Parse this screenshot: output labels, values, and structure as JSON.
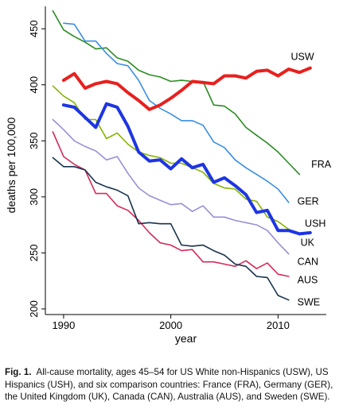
{
  "chart_data": {
    "type": "line",
    "xlabel": "year",
    "ylabel": "deaths per 100,000",
    "xlim": [
      1988.3,
      2014.5
    ],
    "ylim": [
      195,
      470
    ],
    "xticks": [
      1990,
      2000,
      2010
    ],
    "yticks": [
      200,
      250,
      300,
      350,
      400,
      450
    ],
    "grid": false,
    "legend": "inline labels at line ends",
    "series": [
      {
        "name": "USW",
        "color": "#e8201e",
        "width": 4,
        "x": [
          1990,
          1991,
          1992,
          1993,
          1994,
          1995,
          1996,
          1997,
          1998,
          1999,
          2000,
          2001,
          2002,
          2003,
          2004,
          2005,
          2006,
          2007,
          2008,
          2009,
          2010,
          2011,
          2012,
          2013
        ],
        "y": [
          404,
          410,
          397,
          401,
          403,
          401,
          393,
          386,
          378,
          382,
          388,
          395,
          403,
          402,
          401,
          408,
          408,
          406,
          412,
          413,
          408,
          414,
          411,
          415
        ]
      },
      {
        "name": "FRA",
        "color": "#2a8c21",
        "width": 1.6,
        "x": [
          1989,
          1990,
          1991,
          1992,
          1993,
          1994,
          1995,
          1996,
          1997,
          1998,
          1999,
          2000,
          2001,
          2002,
          2003,
          2004,
          2005,
          2006,
          2007,
          2008,
          2009,
          2010,
          2011,
          2012
        ],
        "y": [
          466,
          449,
          443,
          438,
          432,
          433,
          424,
          421,
          413,
          409,
          407,
          403,
          404,
          403,
          403,
          382,
          381,
          374,
          362,
          355,
          348,
          340,
          330,
          320
        ]
      },
      {
        "name": "GER",
        "color": "#3a8ee6",
        "width": 1.6,
        "x": [
          1990,
          1991,
          1992,
          1993,
          1994,
          1995,
          1996,
          1997,
          1998,
          1999,
          2000,
          2001,
          2002,
          2003,
          2004,
          2005,
          2006,
          2007,
          2008,
          2009,
          2010,
          2011
        ],
        "y": [
          455,
          454,
          439,
          439,
          428,
          419,
          417,
          404,
          386,
          379,
          374,
          368,
          368,
          364,
          349,
          344,
          333,
          326,
          320,
          314,
          307,
          295
        ]
      },
      {
        "name": "USH",
        "color": "#1d35e3",
        "width": 4,
        "x": [
          1990,
          1991,
          1992,
          1993,
          1994,
          1995,
          1996,
          1997,
          1998,
          1999,
          2000,
          2001,
          2002,
          2003,
          2004,
          2005,
          2006,
          2007,
          2008,
          2009,
          2010,
          2011,
          2012,
          2013
        ],
        "y": [
          382,
          380,
          371,
          362,
          383,
          380,
          363,
          340,
          332,
          333,
          325,
          334,
          326,
          329,
          313,
          317,
          310,
          302,
          286,
          288,
          270,
          270,
          267,
          268
        ]
      },
      {
        "name": "UK",
        "color": "#86b400",
        "width": 1.6,
        "x": [
          1989,
          1990,
          1991,
          1992,
          1993,
          1994,
          1995,
          1996,
          1997,
          1998,
          1999,
          2000,
          2001,
          2002,
          2003,
          2004,
          2005,
          2006,
          2007,
          2008,
          2009,
          2010,
          2011
        ],
        "y": [
          399,
          390,
          384,
          369,
          369,
          352,
          357,
          347,
          340,
          337,
          335,
          330,
          330,
          326,
          322,
          312,
          308,
          307,
          298,
          296,
          282,
          278,
          271
        ]
      },
      {
        "name": "CAN",
        "color": "#9b8fd6",
        "width": 1.6,
        "x": [
          1989,
          1990,
          1991,
          1992,
          1993,
          1994,
          1995,
          1996,
          1997,
          1998,
          1999,
          2000,
          2001,
          2002,
          2003,
          2004,
          2005,
          2006,
          2007,
          2008,
          2009,
          2010,
          2011
        ],
        "y": [
          369,
          360,
          350,
          345,
          341,
          333,
          336,
          321,
          308,
          301,
          297,
          293,
          294,
          287,
          292,
          282,
          282,
          279,
          277,
          275,
          270,
          259,
          249
        ]
      },
      {
        "name": "AUS",
        "color": "#d42a5a",
        "width": 1.6,
        "x": [
          1989,
          1990,
          1991,
          1992,
          1993,
          1994,
          1995,
          1996,
          1997,
          1998,
          1999,
          2000,
          2001,
          2002,
          2003,
          2004,
          2005,
          2006,
          2007,
          2008,
          2009,
          2010,
          2011
        ],
        "y": [
          358,
          336,
          329,
          324,
          303,
          303,
          292,
          288,
          279,
          268,
          259,
          257,
          252,
          253,
          242,
          242,
          240,
          238,
          243,
          236,
          241,
          231,
          229
        ]
      },
      {
        "name": "SWE",
        "color": "#16334d",
        "width": 1.6,
        "x": [
          1989,
          1990,
          1991,
          1992,
          1993,
          1994,
          1995,
          1996,
          1997,
          1998,
          1999,
          2000,
          2001,
          2002,
          2003,
          2004,
          2005,
          2006,
          2007,
          2008,
          2009,
          2010,
          2011
        ],
        "y": [
          335,
          327,
          327,
          324,
          313,
          309,
          306,
          301,
          276,
          277,
          276,
          276,
          257,
          256,
          257,
          252,
          248,
          240,
          238,
          229,
          228,
          212,
          208
        ]
      }
    ]
  },
  "caption": {
    "label": "Fig. 1.",
    "text": "All-cause mortality, ages 45–54 for US White non-Hispanics (USW), US Hispanics (USH), and six comparison countries: France (FRA), Germany (GER), the United Kingdom (UK), Canada (CAN), Australia (AUS), and Sweden (SWE)."
  }
}
